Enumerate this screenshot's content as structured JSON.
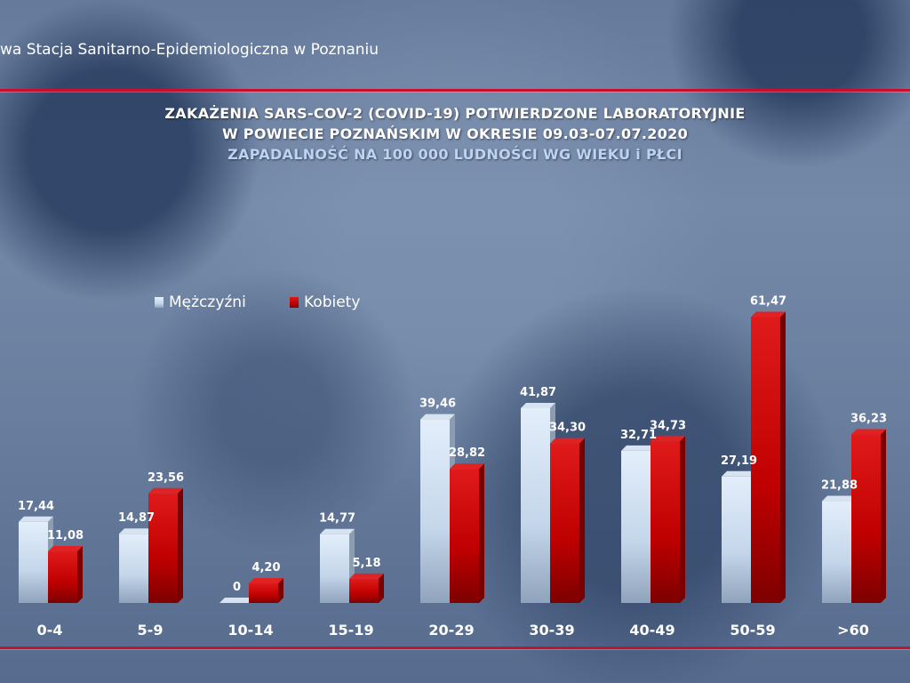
{
  "header": {
    "text": "wa Stacja Sanitarno-Epidemiologiczna w Poznaniu"
  },
  "title": {
    "line1": "ZAKAŻENIA SARS-COV-2 (COVID-19) POTWIERDZONE LABORATORYJNIE",
    "line2": "W POWIECIE POZNAŃSKIM W OKRESIE 09.03-07.07.2020",
    "line3": "ZAPADALNOŚĆ NA 100 000 LUDNOŚCI WG WIEKU i PŁCI"
  },
  "colors": {
    "men": "#c4d6ea",
    "women": "#cc0000",
    "accent_line": "#c8102e"
  },
  "chart_data": {
    "type": "bar",
    "title": "ZAKAŻENIA SARS-COV-2 (COVID-19) POTWIERDZONE LABORATORYJNIE W POWIECIE POZNAŃSKIM W OKRESIE 09.03-07.07.2020",
    "subtitle": "ZAPADALNOŚĆ NA 100 000 LUDNOŚCI WG WIEKU i PŁCI",
    "categories": [
      "0-4",
      "5-9",
      "10-14",
      "15-19",
      "20-29",
      "30-39",
      "40-49",
      "50-59",
      ">60"
    ],
    "series": [
      {
        "name": "Mężczyźni",
        "values": [
          17.44,
          14.87,
          0,
          14.77,
          39.46,
          41.87,
          32.71,
          27.19,
          21.88
        ],
        "labels": [
          "17,44",
          "14,87",
          "0",
          "14,77",
          "39,46",
          "41,87",
          "32,71",
          "27,19",
          "21,88"
        ]
      },
      {
        "name": "Kobiety",
        "values": [
          11.08,
          23.56,
          4.2,
          5.18,
          28.82,
          34.3,
          34.73,
          61.47,
          36.23
        ],
        "labels": [
          "11,08",
          "23,56",
          "4,20",
          "5,18",
          "28,82",
          "34,30",
          "34,73",
          "61,47",
          "36,23"
        ]
      }
    ],
    "xlabel": "",
    "ylabel": "",
    "ylim": [
      0,
      65
    ],
    "grid": false,
    "legend": "top-left",
    "style": "3d"
  }
}
